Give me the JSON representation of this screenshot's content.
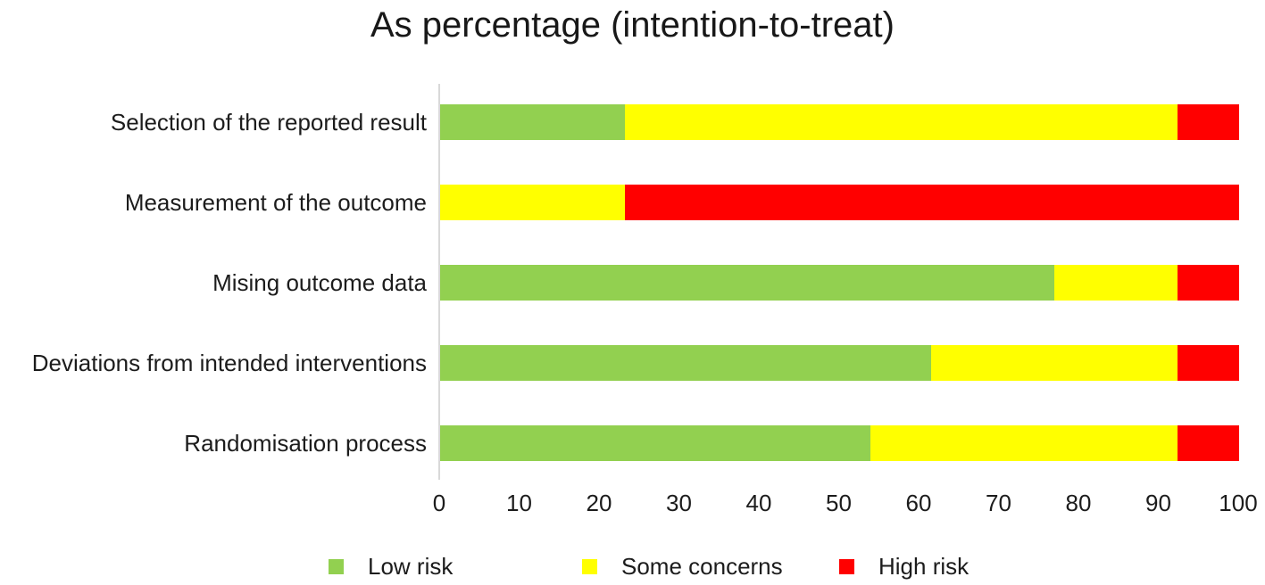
{
  "title": "As percentage (intention-to-treat)",
  "chart_data": {
    "type": "bar",
    "orientation": "horizontal",
    "stacked": true,
    "title": "As percentage (intention-to-treat)",
    "categories": [
      "Selection of the reported result",
      "Measurement of the outcome",
      "Mising outcome data",
      "Deviations from intended interventions",
      "Randomisation process"
    ],
    "series": [
      {
        "name": "Low risk",
        "color": "#92D050",
        "values": [
          23.1,
          0,
          76.9,
          61.5,
          53.8
        ]
      },
      {
        "name": "Some concerns",
        "color": "#FFFF00",
        "values": [
          69.2,
          23.1,
          15.4,
          30.8,
          38.5
        ]
      },
      {
        "name": "High risk",
        "color": "#FF0000",
        "values": [
          7.7,
          76.9,
          7.7,
          7.7,
          7.7
        ]
      }
    ],
    "x_ticks": [
      0,
      10,
      20,
      30,
      40,
      50,
      60,
      70,
      80,
      90,
      100
    ],
    "xlim": [
      0,
      100
    ],
    "xlabel": "",
    "ylabel": "",
    "grid": false,
    "legend_position": "bottom"
  },
  "colors": {
    "axis_line": "#D9D9D9",
    "text": "#1C1C1C",
    "background": "#FFFFFF"
  }
}
